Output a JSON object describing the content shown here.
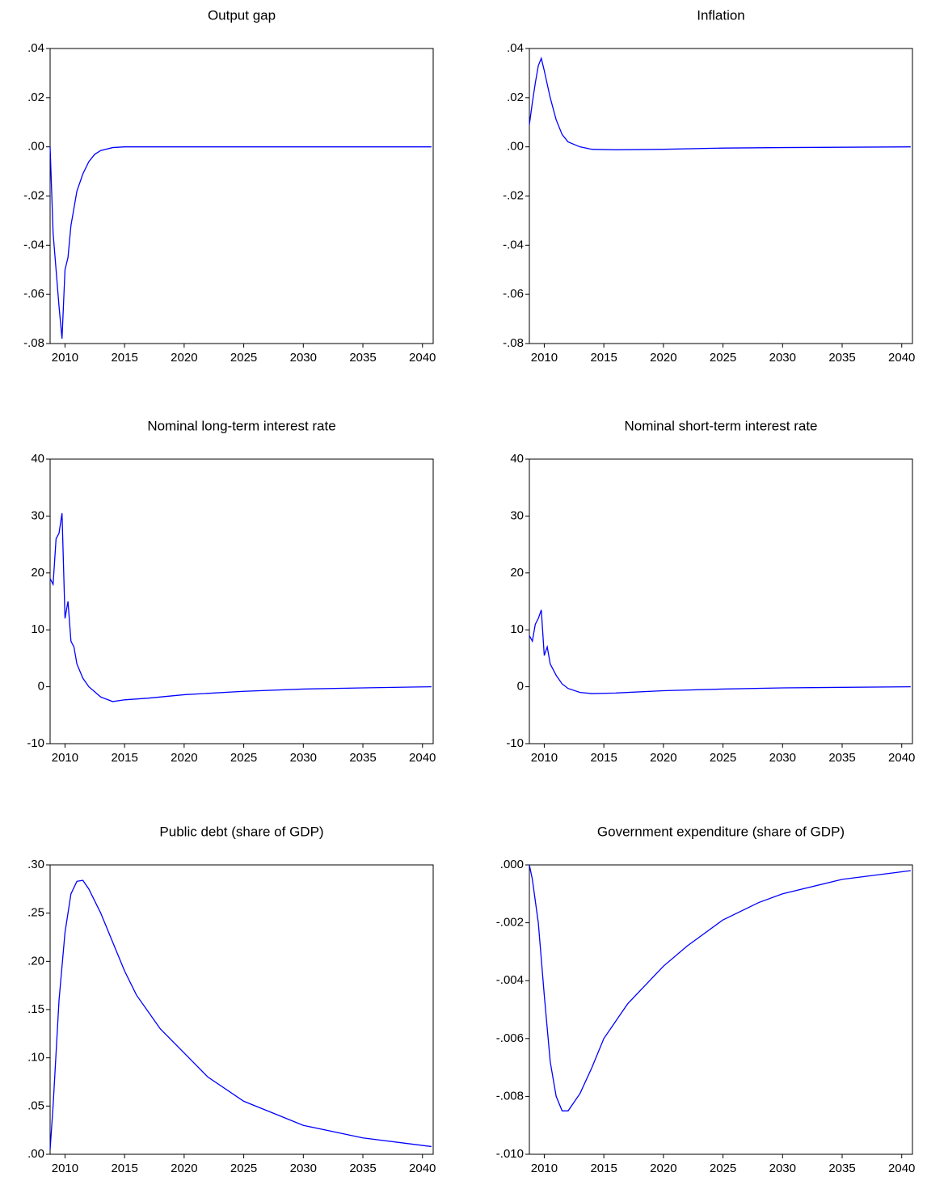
{
  "chart_data": [
    {
      "type": "line",
      "title": "Output gap",
      "color": "#0000ff",
      "x": [
        2008.75,
        2009,
        2009.25,
        2009.5,
        2009.75,
        2010,
        2010.25,
        2010.5,
        2010.75,
        2011,
        2011.5,
        2012,
        2012.5,
        2013,
        2014,
        2015,
        2020,
        2030,
        2040.75
      ],
      "values": [
        0,
        -0.035,
        -0.05,
        -0.065,
        -0.078,
        -0.05,
        -0.045,
        -0.032,
        -0.025,
        -0.018,
        -0.011,
        -0.006,
        -0.003,
        -0.0015,
        -0.0003,
        0,
        0,
        0,
        0
      ],
      "xlim": [
        2008.75,
        2040.9
      ],
      "xticks": [
        2010,
        2015,
        2020,
        2025,
        2030,
        2035,
        2040
      ],
      "ylim": [
        -0.08,
        0.04
      ],
      "yticks": [
        {
          "value": -0.08,
          "label": "-.08"
        },
        {
          "value": -0.06,
          "label": "-.06"
        },
        {
          "value": -0.04,
          "label": "-.04"
        },
        {
          "value": -0.02,
          "label": "-.02"
        },
        {
          "value": 0,
          "label": ".00"
        },
        {
          "value": 0.02,
          "label": ".02"
        },
        {
          "value": 0.04,
          "label": ".04"
        }
      ]
    },
    {
      "type": "line",
      "title": "Inflation",
      "color": "#0000ff",
      "x": [
        2008.75,
        2009,
        2009.25,
        2009.5,
        2009.75,
        2010,
        2010.5,
        2011,
        2011.5,
        2012,
        2013,
        2014,
        2016,
        2020,
        2025,
        2030,
        2040.75
      ],
      "values": [
        0.009,
        0.018,
        0.026,
        0.033,
        0.036,
        0.031,
        0.02,
        0.011,
        0.005,
        0.002,
        0,
        -0.001,
        -0.0012,
        -0.001,
        -0.0005,
        -0.0003,
        0
      ],
      "xlim": [
        2008.75,
        2040.9
      ],
      "xticks": [
        2010,
        2015,
        2020,
        2025,
        2030,
        2035,
        2040
      ],
      "ylim": [
        -0.08,
        0.04
      ],
      "yticks": [
        {
          "value": -0.08,
          "label": "-.08"
        },
        {
          "value": -0.06,
          "label": "-.06"
        },
        {
          "value": -0.04,
          "label": "-.04"
        },
        {
          "value": -0.02,
          "label": "-.02"
        },
        {
          "value": 0,
          "label": ".00"
        },
        {
          "value": 0.02,
          "label": ".02"
        },
        {
          "value": 0.04,
          "label": ".04"
        }
      ]
    },
    {
      "type": "line",
      "title": "Nominal long-term interest rate",
      "color": "#0000ff",
      "x": [
        2008.75,
        2009,
        2009.25,
        2009.5,
        2009.75,
        2010,
        2010.25,
        2010.5,
        2010.75,
        2011,
        2011.5,
        2012,
        2013,
        2014,
        2015,
        2017,
        2020,
        2025,
        2030,
        2035,
        2040.75
      ],
      "values": [
        19,
        18,
        26,
        27,
        30.5,
        12,
        15,
        8,
        7,
        4,
        1.5,
        0,
        -1.8,
        -2.6,
        -2.3,
        -2,
        -1.4,
        -0.8,
        -0.4,
        -0.2,
        0
      ],
      "xlim": [
        2008.75,
        2040.9
      ],
      "xticks": [
        2010,
        2015,
        2020,
        2025,
        2030,
        2035,
        2040
      ],
      "ylim": [
        -10,
        40
      ],
      "yticks": [
        -10,
        0,
        10,
        20,
        30,
        40
      ]
    },
    {
      "type": "line",
      "title": "Nominal short-term interest rate",
      "color": "#0000ff",
      "x": [
        2008.75,
        2009,
        2009.25,
        2009.5,
        2009.75,
        2010,
        2010.25,
        2010.5,
        2010.75,
        2011,
        2011.5,
        2012,
        2013,
        2014,
        2016,
        2020,
        2025,
        2030,
        2040.75
      ],
      "values": [
        9,
        8,
        11,
        12,
        13.5,
        5.5,
        7,
        4,
        3,
        2,
        0.5,
        -0.3,
        -1,
        -1.2,
        -1.1,
        -0.7,
        -0.4,
        -0.2,
        0
      ],
      "xlim": [
        2008.75,
        2040.9
      ],
      "xticks": [
        2010,
        2015,
        2020,
        2025,
        2030,
        2035,
        2040
      ],
      "ylim": [
        -10,
        40
      ],
      "yticks": [
        -10,
        0,
        10,
        20,
        30,
        40
      ]
    },
    {
      "type": "line",
      "title": "Public debt (share of GDP)",
      "color": "#0000ff",
      "x": [
        2008.75,
        2009,
        2009.5,
        2010,
        2010.5,
        2011,
        2011.5,
        2012,
        2013,
        2014,
        2015,
        2016,
        2018,
        2020,
        2022,
        2025,
        2028,
        2030,
        2035,
        2040.75
      ],
      "values": [
        0.005,
        0.05,
        0.16,
        0.23,
        0.27,
        0.283,
        0.284,
        0.275,
        0.25,
        0.22,
        0.19,
        0.165,
        0.13,
        0.105,
        0.08,
        0.055,
        0.04,
        0.03,
        0.017,
        0.008
      ],
      "xlim": [
        2008.75,
        2040.9
      ],
      "xticks": [
        2010,
        2015,
        2020,
        2025,
        2030,
        2035,
        2040
      ],
      "ylim": [
        0,
        0.3
      ],
      "yticks": [
        {
          "value": 0,
          "label": ".00"
        },
        {
          "value": 0.05,
          "label": ".05"
        },
        {
          "value": 0.1,
          "label": ".10"
        },
        {
          "value": 0.15,
          "label": ".15"
        },
        {
          "value": 0.2,
          "label": ".20"
        },
        {
          "value": 0.25,
          "label": ".25"
        },
        {
          "value": 0.3,
          "label": ".30"
        }
      ]
    },
    {
      "type": "line",
      "title": "Government expenditure (share of GDP)",
      "color": "#0000ff",
      "x": [
        2008.75,
        2009,
        2009.5,
        2010,
        2010.5,
        2011,
        2011.5,
        2012,
        2013,
        2014,
        2015,
        2017,
        2020,
        2022,
        2025,
        2028,
        2030,
        2035,
        2040.75
      ],
      "values": [
        0,
        -0.0005,
        -0.002,
        -0.0045,
        -0.0068,
        -0.008,
        -0.0085,
        -0.0085,
        -0.0079,
        -0.007,
        -0.006,
        -0.0048,
        -0.0035,
        -0.0028,
        -0.0019,
        -0.0013,
        -0.001,
        -0.0005,
        -0.0002
      ],
      "xlim": [
        2008.75,
        2040.9
      ],
      "xticks": [
        2010,
        2015,
        2020,
        2025,
        2030,
        2035,
        2040
      ],
      "ylim": [
        -0.01,
        0
      ],
      "yticks": [
        {
          "value": -0.01,
          "label": "-.010"
        },
        {
          "value": -0.008,
          "label": "-.008"
        },
        {
          "value": -0.006,
          "label": "-.006"
        },
        {
          "value": -0.004,
          "label": "-.004"
        },
        {
          "value": -0.002,
          "label": "-.002"
        },
        {
          "value": 0,
          "label": ".000"
        }
      ]
    }
  ]
}
